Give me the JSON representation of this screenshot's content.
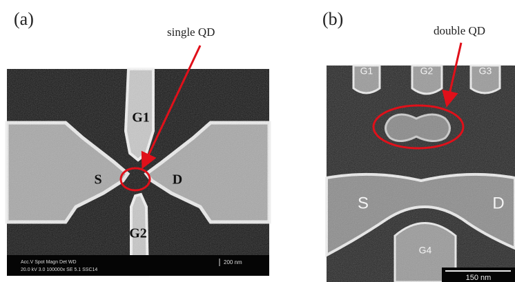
{
  "panels": [
    {
      "label": "(a)",
      "annotation": "single QD",
      "gates": [
        "G1",
        "G2"
      ],
      "source": "S",
      "drain": "D",
      "info": [
        "Acc.V  Spot Magn    Det  WD",
        "20.0 kV 3.0 100000x  SE  5.1     SSC14"
      ],
      "scale_bar": "200 nm"
    },
    {
      "label": "(b)",
      "annotation": "double QD",
      "gates": [
        "G1",
        "G2",
        "G3",
        "G4"
      ],
      "source": "S",
      "drain": "D",
      "scale_bar": "150 nm"
    }
  ]
}
